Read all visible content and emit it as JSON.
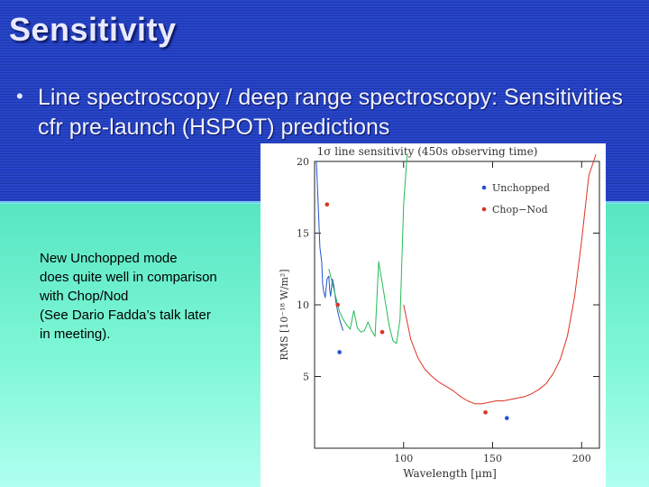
{
  "slide": {
    "title": "Sensitivity",
    "bullet": "Line spectroscopy / deep range spectroscopy: Sensitivities cfr pre-launch (HSPOT) predictions",
    "note": [
      "New Unchopped mode",
      "does quite well in comparison",
      "with Chop/Nod",
      "(See Dario Fadda’s talk later",
      "in meeting)."
    ]
  },
  "chart_data": {
    "type": "line",
    "title": "1σ line sensitivity (450s observing time)",
    "xlabel": "Wavelength [μm]",
    "ylabel": "RMS [10⁻¹⁸ W/m²]",
    "xlim": [
      50,
      210
    ],
    "ylim": [
      0,
      20
    ],
    "xticks": [
      100,
      150,
      200
    ],
    "yticks": [
      5,
      10,
      15,
      20
    ],
    "legend_position": "top-right",
    "series": [
      {
        "name": "blue-line",
        "color": "#2255cc",
        "x": [
          51,
          52,
          53,
          54,
          54.5,
          55,
          56,
          57,
          58,
          58.5,
          59,
          60,
          61,
          62,
          63,
          64,
          65,
          66
        ],
        "y": [
          20,
          17,
          14,
          13,
          11.5,
          11,
          10.5,
          11.8,
          12,
          11,
          10.6,
          11.8,
          11.2,
          10.2,
          9.5,
          9.0,
          8.6,
          8.2
        ]
      },
      {
        "name": "green-line",
        "color": "#22bb55",
        "x": [
          58,
          60,
          62,
          64,
          66,
          68,
          70,
          72,
          74,
          76,
          78,
          80,
          82,
          84,
          86,
          88,
          90,
          92,
          94,
          96,
          98,
          100,
          102
        ],
        "y": [
          12.5,
          11.5,
          10.5,
          9.5,
          9.0,
          8.6,
          8.3,
          9.6,
          8.4,
          8.1,
          8.2,
          8.8,
          8.2,
          7.8,
          13.0,
          11.5,
          10.0,
          8.5,
          7.5,
          7.3,
          9.0,
          17.0,
          21.0
        ]
      },
      {
        "name": "red-line",
        "color": "#dd3322",
        "x": [
          100,
          104,
          108,
          112,
          116,
          120,
          124,
          128,
          132,
          136,
          140,
          144,
          148,
          152,
          156,
          160,
          164,
          168,
          172,
          176,
          180,
          184,
          188,
          192,
          196,
          200,
          204,
          208
        ],
        "y": [
          10.0,
          7.6,
          6.3,
          5.5,
          5.0,
          4.6,
          4.3,
          4.0,
          3.6,
          3.3,
          3.1,
          3.1,
          3.2,
          3.3,
          3.3,
          3.4,
          3.5,
          3.6,
          3.8,
          4.1,
          4.5,
          5.2,
          6.2,
          7.8,
          10.5,
          14.5,
          19.0,
          22.0
        ]
      }
    ],
    "points": [
      {
        "name": "Unchopped",
        "color": "#2255cc",
        "x": [
          64,
          158
        ],
        "y": [
          6.7,
          2.1
        ]
      },
      {
        "name": "Chop−Nod",
        "color": "#dd3322",
        "x": [
          57,
          63,
          88,
          146
        ],
        "y": [
          17,
          10.0,
          8.1,
          2.5
        ]
      }
    ]
  }
}
